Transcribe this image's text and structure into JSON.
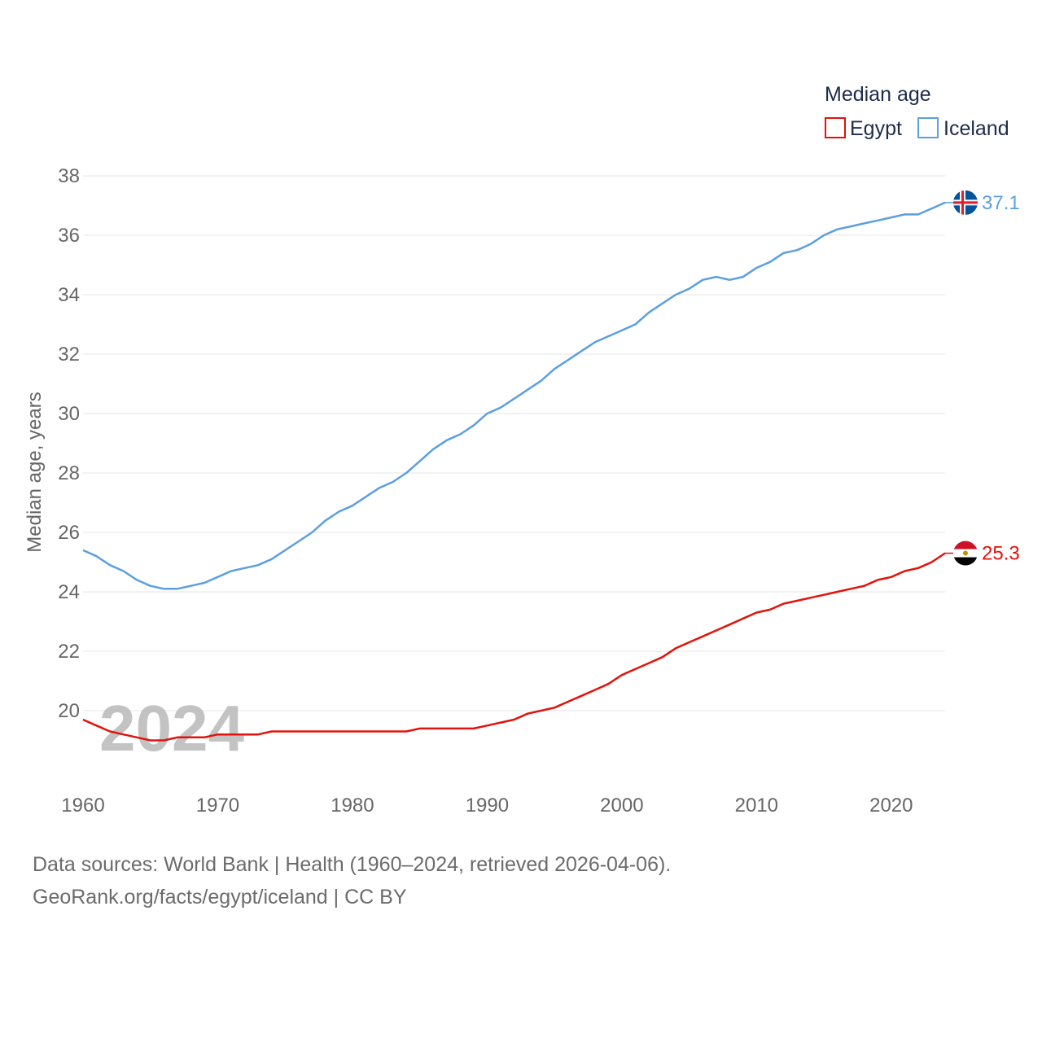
{
  "chart_data": {
    "type": "line",
    "title": "",
    "legend_title": "Median age",
    "ylabel": "Median age, years",
    "xlabel": "",
    "ylim": [
      18,
      38
    ],
    "xlim": [
      1960,
      2024
    ],
    "y_ticks": [
      20,
      22,
      24,
      26,
      28,
      30,
      32,
      34,
      36,
      38
    ],
    "x_ticks": [
      1960,
      1970,
      1980,
      1990,
      2000,
      2010,
      2020
    ],
    "grid": true,
    "legend_position": "top-right",
    "current_year_label": "2024",
    "x": [
      1960,
      1961,
      1962,
      1963,
      1964,
      1965,
      1966,
      1967,
      1968,
      1969,
      1970,
      1971,
      1972,
      1973,
      1974,
      1975,
      1976,
      1977,
      1978,
      1979,
      1980,
      1981,
      1982,
      1983,
      1984,
      1985,
      1986,
      1987,
      1988,
      1989,
      1990,
      1991,
      1992,
      1993,
      1994,
      1995,
      1996,
      1997,
      1998,
      1999,
      2000,
      2001,
      2002,
      2003,
      2004,
      2005,
      2006,
      2007,
      2008,
      2009,
      2010,
      2011,
      2012,
      2013,
      2014,
      2015,
      2016,
      2017,
      2018,
      2019,
      2020,
      2021,
      2022,
      2023,
      2024
    ],
    "series": [
      {
        "name": "Egypt",
        "color": "#e3120b",
        "end_label": "25.3",
        "flag": "egypt-flag",
        "values": [
          19.7,
          19.5,
          19.3,
          19.2,
          19.1,
          19.0,
          19.0,
          19.1,
          19.1,
          19.1,
          19.2,
          19.2,
          19.2,
          19.2,
          19.3,
          19.3,
          19.3,
          19.3,
          19.3,
          19.3,
          19.3,
          19.3,
          19.3,
          19.3,
          19.3,
          19.4,
          19.4,
          19.4,
          19.4,
          19.4,
          19.5,
          19.6,
          19.7,
          19.9,
          20.0,
          20.1,
          20.3,
          20.5,
          20.7,
          20.9,
          21.2,
          21.4,
          21.6,
          21.8,
          22.1,
          22.3,
          22.5,
          22.7,
          22.9,
          23.1,
          23.3,
          23.4,
          23.6,
          23.7,
          23.8,
          23.9,
          24.0,
          24.1,
          24.2,
          24.4,
          24.5,
          24.7,
          24.8,
          25.0,
          25.3
        ]
      },
      {
        "name": "Iceland",
        "color": "#5c9fe0",
        "end_label": "37.1",
        "flag": "iceland-flag",
        "values": [
          25.4,
          25.2,
          24.9,
          24.7,
          24.4,
          24.2,
          24.1,
          24.1,
          24.2,
          24.3,
          24.5,
          24.7,
          24.8,
          24.9,
          25.1,
          25.4,
          25.7,
          26.0,
          26.4,
          26.7,
          26.9,
          27.2,
          27.5,
          27.7,
          28.0,
          28.4,
          28.8,
          29.1,
          29.3,
          29.6,
          30.0,
          30.2,
          30.5,
          30.8,
          31.1,
          31.5,
          31.8,
          32.1,
          32.4,
          32.6,
          32.8,
          33.0,
          33.4,
          33.7,
          34.0,
          34.2,
          34.5,
          34.6,
          34.5,
          34.6,
          34.9,
          35.1,
          35.4,
          35.5,
          35.7,
          36.0,
          36.2,
          36.3,
          36.4,
          36.5,
          36.6,
          36.7,
          36.7,
          36.9,
          37.1
        ]
      }
    ]
  },
  "footer": {
    "line1": "Data sources: World Bank | Health (1960–2024, retrieved 2026-04-06).",
    "line2": "GeoRank.org/facts/egypt/iceland | CC BY"
  }
}
